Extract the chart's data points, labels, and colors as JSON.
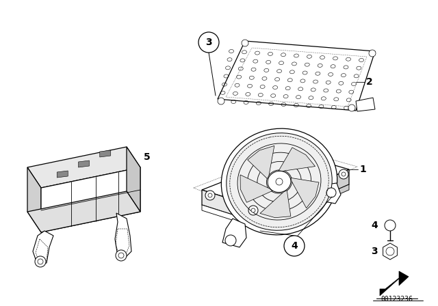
{
  "background_color": "#ffffff",
  "image_id": "00123236",
  "font_size_labels": 10,
  "font_weight": "bold",
  "lw_main": 0.9,
  "lw_thin": 0.5,
  "lw_dot": 0.5,
  "gray_light": "#d8d8d8",
  "gray_mid": "#bbbbbb"
}
